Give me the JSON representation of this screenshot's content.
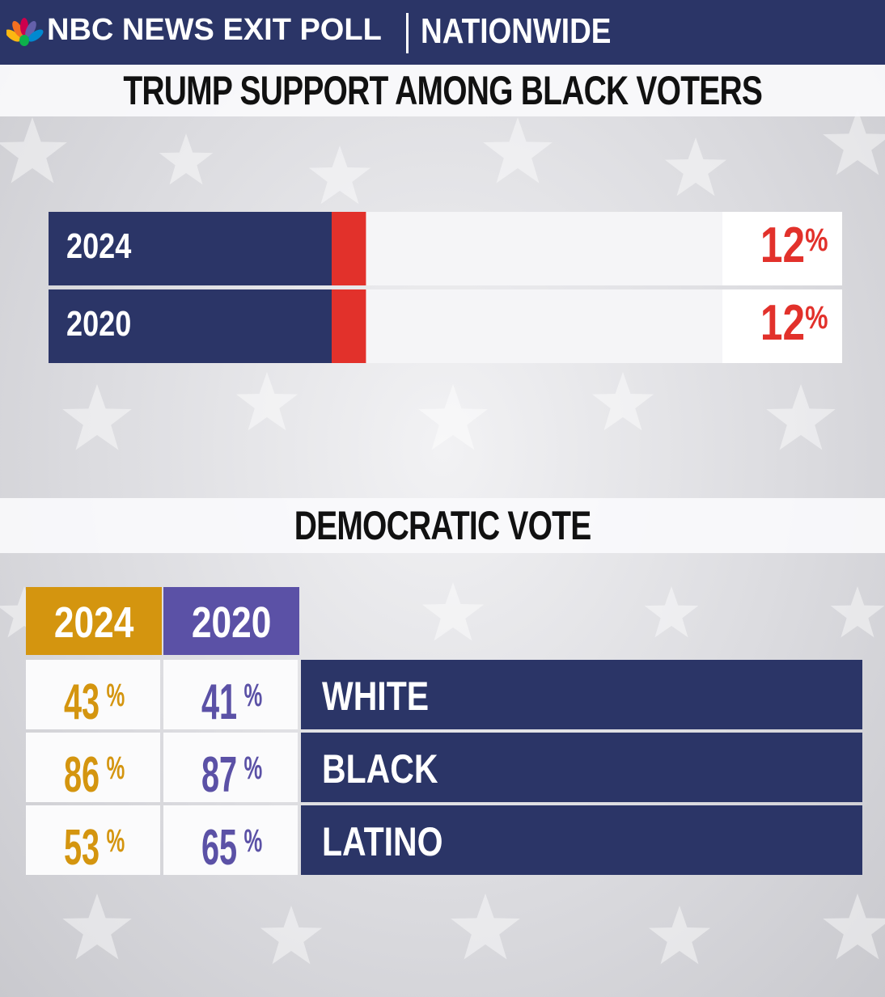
{
  "header": {
    "brand": "NBC NEWS EXIT POLL",
    "scope": "NATIONWIDE",
    "logo_icon": "nbc-peacock-icon"
  },
  "colors": {
    "navy": "#2b3567",
    "republican_red": "#e2312b",
    "gold_2024": "#d4950f",
    "purple_2020": "#5b51a6"
  },
  "chart_data": [
    {
      "type": "bar",
      "title": "TRUMP SUPPORT AMONG BLACK VOTERS",
      "orientation": "horizontal",
      "categories": [
        "2024",
        "2020"
      ],
      "values": [
        12,
        12
      ],
      "value_labels": [
        "12",
        "12"
      ],
      "unit": "%",
      "xlim": [
        0,
        100
      ]
    },
    {
      "type": "table",
      "title": "DEMOCRATIC VOTE",
      "columns": [
        "2024",
        "2020"
      ],
      "rows": [
        {
          "group": "WHITE",
          "values": [
            "43",
            "41"
          ]
        },
        {
          "group": "BLACK",
          "values": [
            "86",
            "87"
          ]
        },
        {
          "group": "LATINO",
          "values": [
            "53",
            "65"
          ]
        }
      ],
      "unit": "%"
    }
  ]
}
